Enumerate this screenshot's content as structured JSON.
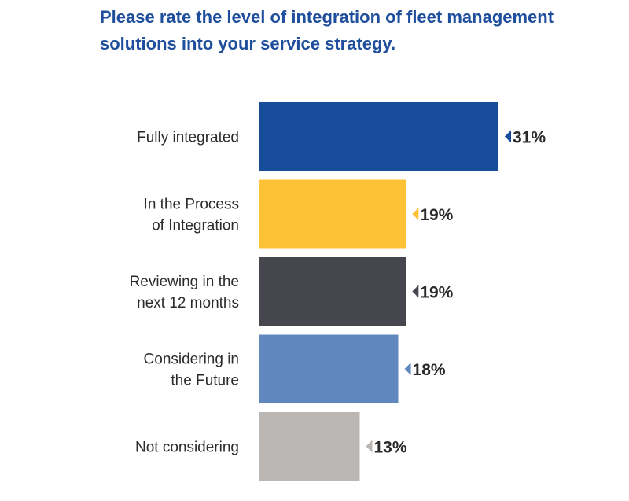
{
  "chart_data": {
    "type": "bar",
    "orientation": "horizontal",
    "title_lines": [
      "Please rate the level of integration of fleet management",
      "solutions into your service strategy."
    ],
    "categories": [
      [
        "Fully integrated"
      ],
      [
        "In the Process",
        "of Integration"
      ],
      [
        "Reviewing in the",
        "next 12 months"
      ],
      [
        "Considering in",
        "the Future"
      ],
      [
        "Not considering"
      ]
    ],
    "values": [
      31,
      19,
      19,
      18,
      13
    ],
    "value_labels": [
      "31%",
      "19%",
      "19%",
      "18%",
      "13%"
    ],
    "colors": [
      "#174c9a",
      "#fdc236",
      "#46464f",
      "#6088bf",
      "#bab6b3"
    ],
    "xlim": [
      0,
      31
    ],
    "grid": false,
    "legend": "none"
  }
}
